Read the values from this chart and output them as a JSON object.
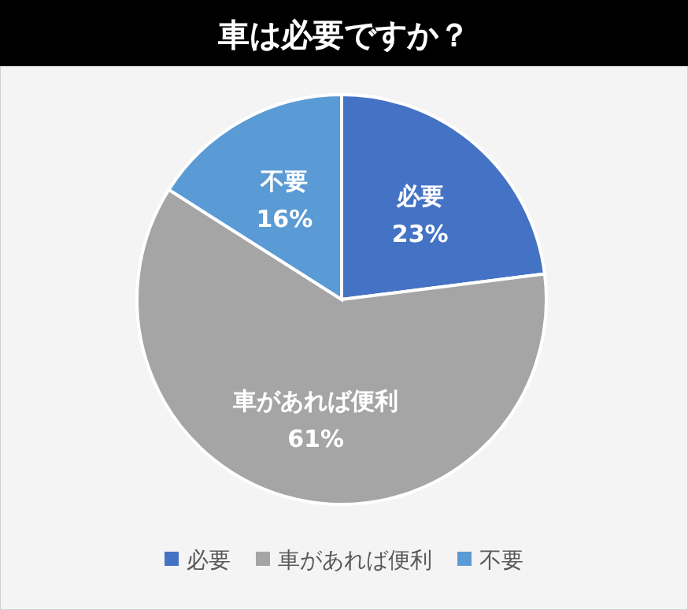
{
  "chart_data": {
    "type": "pie",
    "title": "車は必要ですか？",
    "categories": [
      "必要",
      "車があれば便利",
      "不要"
    ],
    "values": [
      23,
      61,
      16
    ],
    "value_labels": [
      "23%",
      "61%",
      "16%"
    ],
    "colors": [
      "#4472c4",
      "#a5a5a5",
      "#5b9bd5"
    ],
    "legend": "bottom"
  }
}
